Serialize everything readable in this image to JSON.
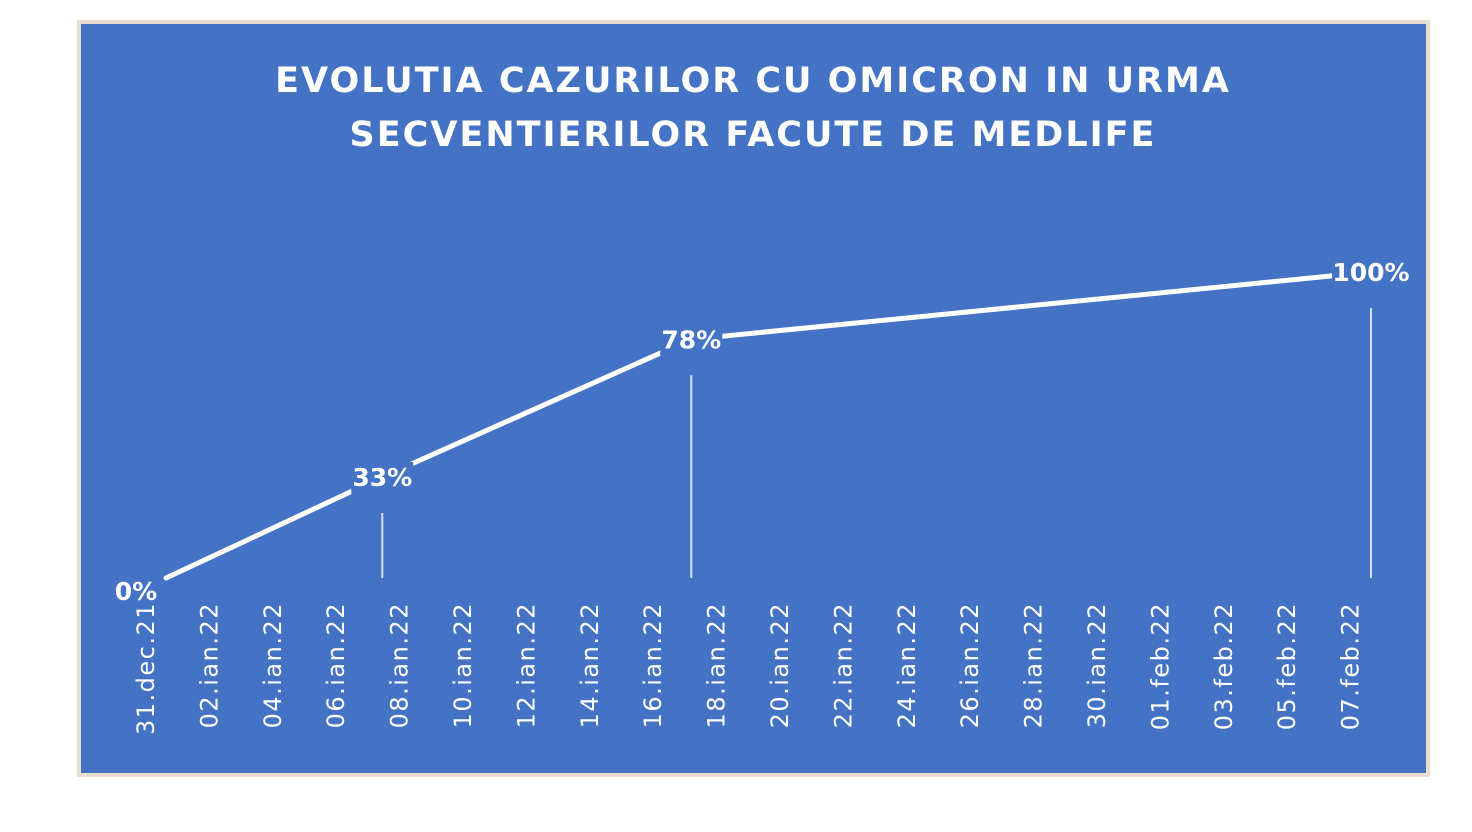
{
  "chart_data": {
    "type": "line",
    "title": "EVOLUTIA CAZURILOR CU OMICRON IN URMA SECVENTIERILOR FACUTE DE MEDLIFE",
    "title_lines": [
      "EVOLUTIA CAZURILOR CU OMICRON IN URMA",
      "SECVENTIERILOR FACUTE DE MEDLIFE"
    ],
    "xlabel": "",
    "ylabel": "",
    "x_axis_ticks": [
      "31.dec.21",
      "02.ian.22",
      "04.ian.22",
      "06.ian.22",
      "08.ian.22",
      "10.ian.22",
      "12.ian.22",
      "14.ian.22",
      "16.ian.22",
      "18.ian.22",
      "20.ian.22",
      "22.ian.22",
      "24.ian.22",
      "26.ian.22",
      "28.ian.22",
      "30.ian.22",
      "01.feb.22",
      "03.feb.22",
      "05.feb.22",
      "07.feb.22"
    ],
    "x_range": [
      "31.dec.21",
      "08.feb.22"
    ],
    "ylim": [
      0,
      100
    ],
    "grid": false,
    "legend": "none",
    "series": [
      {
        "points": [
          {
            "x": "31.dec.21",
            "y": 0,
            "label": "0%"
          },
          {
            "x": "07.ian.22",
            "y": 33,
            "label": "33%"
          },
          {
            "x": "17.ian.22",
            "y": 78,
            "label": "78%"
          },
          {
            "x": "08.feb.22",
            "y": 100,
            "label": "100%"
          }
        ]
      }
    ]
  },
  "colors": {
    "background": "#4472c4",
    "border": "#e9ddd2",
    "line": "#ffffff",
    "text": "#ffffff"
  }
}
